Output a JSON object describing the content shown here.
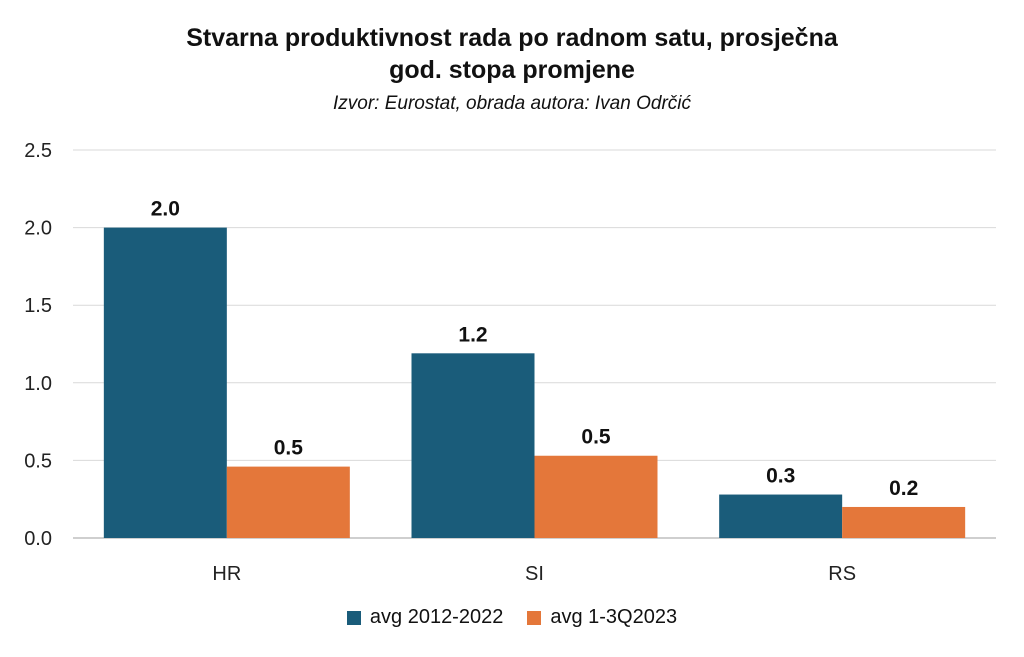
{
  "colors": {
    "series1": "#1a5c7a",
    "series2": "#e4773a",
    "grid": "#d9d9d9",
    "axis": "#bfbfbf"
  },
  "chart_data": {
    "type": "bar",
    "title_line1": "Stvarna produktivnost rada po radnom satu, prosječna",
    "title_line2": "god. stopa promjene",
    "subtitle": "Izvor: Eurostat, obrada autora: Ivan Odrčić",
    "categories": [
      "HR",
      "SI",
      "RS"
    ],
    "series": [
      {
        "name": "avg 2012-2022",
        "values": [
          2.0,
          1.19,
          0.28
        ],
        "labels": [
          "2.0",
          "1.2",
          "0.3"
        ]
      },
      {
        "name": "avg 1-3Q2023",
        "values": [
          0.46,
          0.53,
          0.2
        ],
        "labels": [
          "0.5",
          "0.5",
          "0.2"
        ]
      }
    ],
    "yticks": [
      "0.0",
      "0.5",
      "1.0",
      "1.5",
      "2.0",
      "2.5"
    ],
    "ylim": [
      0,
      2.5
    ],
    "grid": true,
    "legend_position": "bottom"
  }
}
